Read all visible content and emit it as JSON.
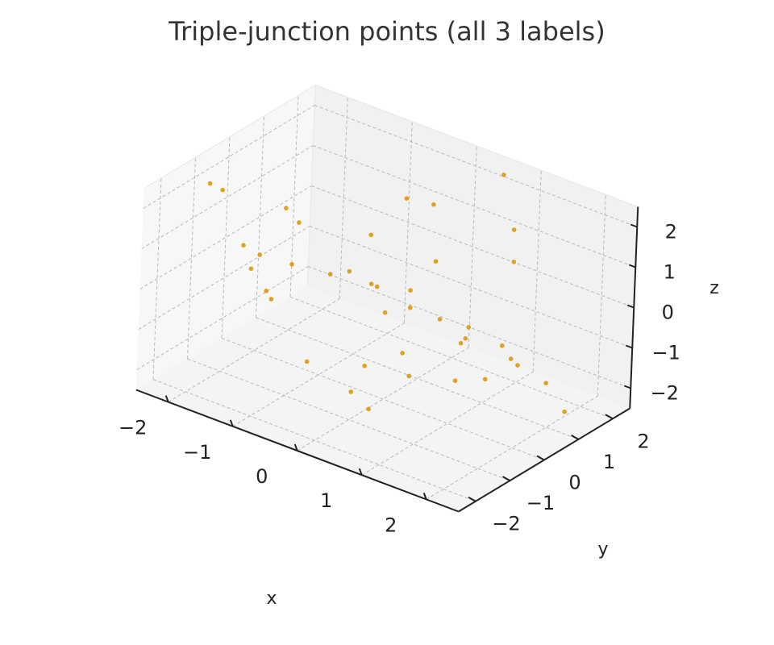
{
  "chart_data": {
    "type": "scatter",
    "projection": "3d",
    "title": "Triple-junction points (all 3 labels)",
    "xlabel": "x",
    "ylabel": "y",
    "zlabel": "z",
    "xlim": [
      -2.5,
      2.5
    ],
    "ylim": [
      -2.5,
      2.5
    ],
    "zlim": [
      -2.5,
      2.5
    ],
    "x_ticks": [
      -2,
      -1,
      0,
      1,
      2
    ],
    "y_ticks": [
      -2,
      -1,
      0,
      1,
      2
    ],
    "z_ticks": [
      -2,
      -1,
      0,
      1,
      2
    ],
    "x_tick_labels": [
      "−2",
      "−1",
      "0",
      "1",
      "2"
    ],
    "y_tick_labels": [
      "−2",
      "−1",
      "0",
      "1",
      "2"
    ],
    "z_tick_labels": [
      "−2",
      "−1",
      "0",
      "1",
      "2"
    ],
    "grid": true,
    "marker_color": "#e0a020",
    "points": [
      {
        "x": 1.64,
        "y": 0.51,
        "z": 2.43
      },
      {
        "x": -0.08,
        "y": 1.44,
        "z": 1.54
      },
      {
        "x": -2.22,
        "y": -1.08,
        "z": 2.06
      },
      {
        "x": 0.58,
        "y": 2.21,
        "z": 2.28
      },
      {
        "x": -0.16,
        "y": -0.24,
        "z": 1.6
      },
      {
        "x": -0.47,
        "y": 1.39,
        "z": 1.48
      },
      {
        "x": 1.82,
        "y": -1.09,
        "z": 0.94
      },
      {
        "x": -1.59,
        "y": -0.01,
        "z": 1.28
      },
      {
        "x": -2.52,
        "y": -0.11,
        "z": 1.22
      },
      {
        "x": -0.3,
        "y": -0.57,
        "z": 0.78
      },
      {
        "x": -1.42,
        "y": 0.06,
        "z": 0.99
      },
      {
        "x": -1.79,
        "y": -0.85,
        "z": 0.67
      },
      {
        "x": 1.23,
        "y": 1.34,
        "z": 0.96
      },
      {
        "x": 1.27,
        "y": -0.88,
        "z": 0.7
      },
      {
        "x": -1.41,
        "y": -1.34,
        "z": 0.57
      },
      {
        "x": -1.12,
        "y": 0.47,
        "z": -0.32
      },
      {
        "x": -0.81,
        "y": -1.3,
        "z": 1.02
      },
      {
        "x": -0.91,
        "y": -1.68,
        "z": 0.29
      },
      {
        "x": -2.23,
        "y": 0.51,
        "z": -0.53
      },
      {
        "x": 0.16,
        "y": 1.1,
        "z": 0.45
      },
      {
        "x": -0.01,
        "y": -0.29,
        "z": 0.43
      },
      {
        "x": 1.66,
        "y": 0.25,
        "z": -0.3
      },
      {
        "x": 1.97,
        "y": -0.08,
        "z": -0.27
      },
      {
        "x": 1.14,
        "y": 0.03,
        "z": -0.44
      },
      {
        "x": 0.16,
        "y": 0.38,
        "z": 0.1
      },
      {
        "x": 0.35,
        "y": 0.02,
        "z": -0.03
      },
      {
        "x": 0.27,
        "y": -0.57,
        "z": 0.1
      },
      {
        "x": 1.53,
        "y": -0.86,
        "z": -0.68
      },
      {
        "x": -2.34,
        "y": 0.96,
        "z": -1.72
      },
      {
        "x": -0.68,
        "y": 0.85,
        "z": -0.49
      },
      {
        "x": 1.27,
        "y": 1.5,
        "z": -1.66
      },
      {
        "x": 1.88,
        "y": -0.65,
        "z": -0.54
      },
      {
        "x": 0.76,
        "y": -0.74,
        "z": -1.09
      },
      {
        "x": 1.55,
        "y": 1.82,
        "z": -2.1
      },
      {
        "x": 0.55,
        "y": 1.32,
        "z": -1.34
      },
      {
        "x": 2.11,
        "y": 1.31,
        "z": -2.21
      },
      {
        "x": 0.22,
        "y": -1.4,
        "z": -1.47
      },
      {
        "x": 0.08,
        "y": 0.37,
        "z": -1.5
      },
      {
        "x": -0.71,
        "y": -0.93,
        "z": -1.52
      },
      {
        "x": -0.24,
        "y": -0.12,
        "z": -1.76
      },
      {
        "x": 0.25,
        "y": -0.91,
        "z": -2.13
      }
    ]
  }
}
